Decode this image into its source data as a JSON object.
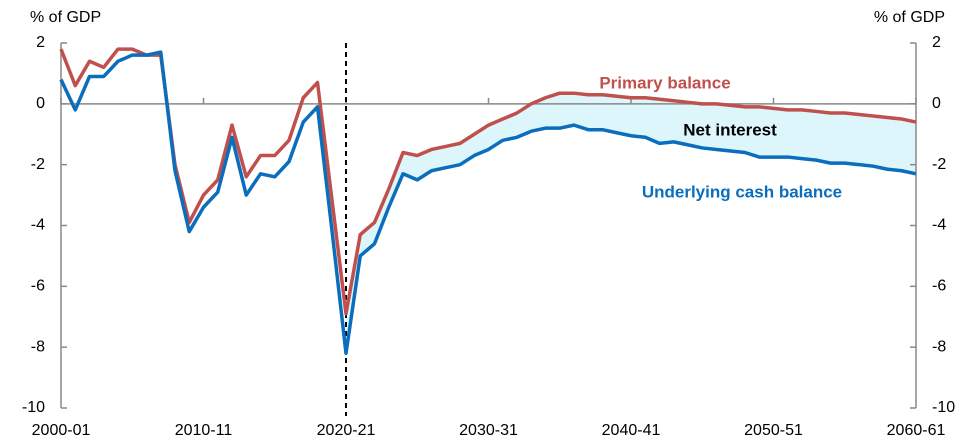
{
  "chart_data": {
    "type": "line",
    "y_label": "% of GDP",
    "y2_label": "% of GDP",
    "categories": [
      "2000-01",
      null,
      null,
      null,
      null,
      null,
      null,
      null,
      null,
      null,
      "2010-11",
      null,
      null,
      null,
      null,
      null,
      null,
      null,
      null,
      null,
      "2020-21",
      null,
      null,
      null,
      null,
      null,
      null,
      null,
      null,
      null,
      "2030-31",
      null,
      null,
      null,
      null,
      null,
      null,
      null,
      null,
      null,
      "2040-41",
      null,
      null,
      null,
      null,
      null,
      null,
      null,
      null,
      null,
      "2050-51",
      null,
      null,
      null,
      null,
      null,
      null,
      null,
      null,
      null,
      "2060-61"
    ],
    "series": [
      {
        "name": "Primary balance",
        "color": "#c0504d",
        "values": [
          1.8,
          0.6,
          1.4,
          1.2,
          1.8,
          1.8,
          1.6,
          1.6,
          -2.0,
          -3.9,
          -3.0,
          -2.5,
          -0.7,
          -2.4,
          -1.7,
          -1.7,
          -1.2,
          0.2,
          0.7,
          -3.1,
          -6.9,
          -4.3,
          -3.9,
          -2.8,
          -1.6,
          -1.7,
          -1.5,
          -1.4,
          -1.3,
          -1.0,
          -0.7,
          -0.5,
          -0.3,
          0.0,
          0.2,
          0.35,
          0.35,
          0.3,
          0.3,
          0.25,
          0.2,
          0.2,
          0.15,
          0.1,
          0.05,
          0.0,
          0.0,
          -0.05,
          -0.1,
          -0.1,
          -0.15,
          -0.2,
          -0.2,
          -0.25,
          -0.3,
          -0.3,
          -0.35,
          -0.4,
          -0.45,
          -0.5,
          -0.6
        ]
      },
      {
        "name": "Underlying cash balance",
        "color": "#0a6ebd",
        "values": [
          0.8,
          -0.2,
          0.9,
          0.9,
          1.4,
          1.6,
          1.6,
          1.7,
          -2.2,
          -4.2,
          -3.4,
          -2.9,
          -1.1,
          -3.0,
          -2.3,
          -2.4,
          -1.9,
          -0.6,
          -0.1,
          -4.1,
          -8.2,
          -5.0,
          -4.6,
          -3.4,
          -2.3,
          -2.5,
          -2.2,
          -2.1,
          -2.0,
          -1.7,
          -1.5,
          -1.2,
          -1.1,
          -0.9,
          -0.8,
          -0.8,
          -0.7,
          -0.85,
          -0.85,
          -0.95,
          -1.05,
          -1.1,
          -1.3,
          -1.25,
          -1.35,
          -1.45,
          -1.5,
          -1.55,
          -1.6,
          -1.75,
          -1.75,
          -1.75,
          -1.8,
          -1.85,
          -1.95,
          -1.95,
          -2.0,
          -2.05,
          -2.15,
          -2.2,
          -2.3
        ]
      }
    ],
    "annotations": [
      "Primary balance",
      "Net interest",
      "Underlying cash balance"
    ],
    "fill_between_color": "#dcf6fb",
    "vline": "2020-21",
    "ylim": [
      -10,
      2
    ],
    "yticks": [
      -10,
      -8,
      -6,
      -4,
      -2,
      0,
      2
    ],
    "y2lim": [
      -10,
      2
    ],
    "y2ticks": [
      -10,
      -8,
      -6,
      -4,
      -2,
      0,
      2
    ]
  }
}
